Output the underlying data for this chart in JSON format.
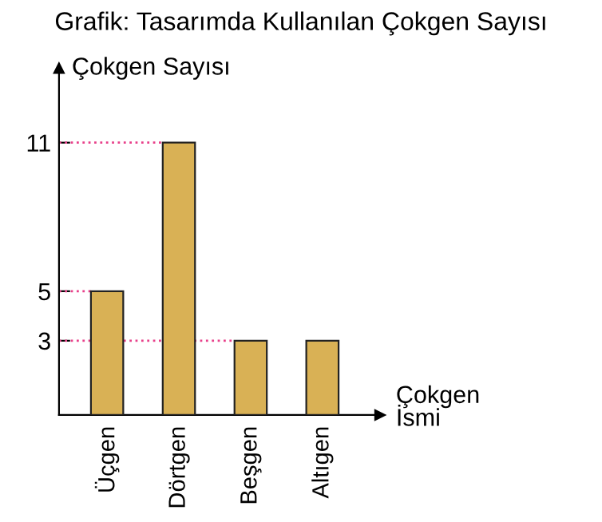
{
  "chart_data": {
    "type": "bar",
    "title": "Grafik: Tasarımda Kullanılan Çokgen Sayısı",
    "xlabel": "Çokgen\nİsmi",
    "ylabel": "Çokgen Sayısı",
    "categories": [
      "Üçgen",
      "Dörtgen",
      "Beşgen",
      "Altıgen"
    ],
    "values": [
      5,
      11,
      3,
      3
    ],
    "color": "#d9b155",
    "ylim": [
      0,
      14
    ],
    "yticks": [
      3,
      5,
      11
    ],
    "grid": false,
    "legend": false,
    "ref_lines": [
      {
        "axis": "y",
        "value": 11,
        "color": "#e8408a",
        "line_style": "dotted"
      },
      {
        "axis": "y",
        "value": 5,
        "color": "#e8408a",
        "line_style": "dotted"
      },
      {
        "axis": "y",
        "value": 3,
        "color": "#e8408a",
        "line_style": "dotted"
      }
    ]
  }
}
